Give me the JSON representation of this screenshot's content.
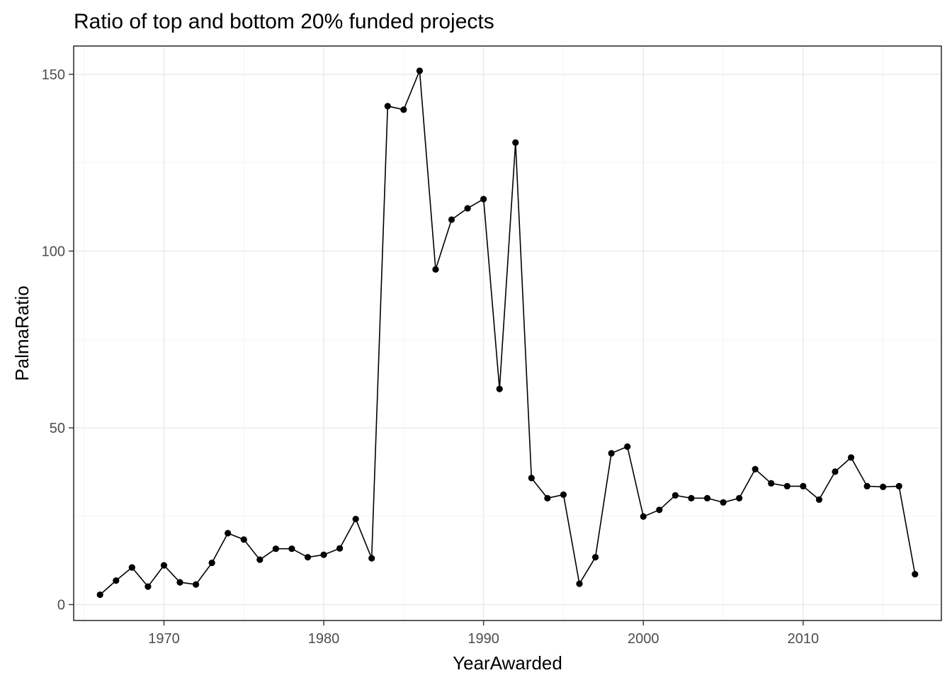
{
  "chart_data": {
    "type": "line",
    "title": "Ratio of top and bottom 20% funded projects",
    "xlabel": "YearAwarded",
    "ylabel": "PalmaRatio",
    "xlim": [
      1963.5,
      1919.5
    ],
    "ylim": [
      -4.5,
      158
    ],
    "x_ticks": [
      1970,
      1980,
      1990,
      2000,
      2010
    ],
    "y_ticks": [
      0,
      50,
      100,
      150
    ],
    "grid": true,
    "legend": "none",
    "series": [
      {
        "x": [
          1966,
          1967,
          1968,
          1969,
          1970,
          1971,
          1972,
          1973,
          1974,
          1975,
          1976,
          1977,
          1978,
          1979,
          1980,
          1981,
          1982,
          1983,
          1984,
          1985,
          1986,
          1987,
          1988,
          1989,
          1990,
          1991,
          1992,
          1993,
          1994,
          1995,
          1996,
          1997,
          1998,
          1999,
          2000,
          2001,
          2002,
          2003,
          2004,
          2005,
          2006,
          2007,
          2008,
          2009,
          2010,
          2011,
          2012,
          2013,
          2014,
          2015,
          2016,
          2017
        ],
        "values": [
          2.8,
          6.8,
          10.5,
          5.1,
          11.1,
          6.3,
          5.7,
          11.8,
          20.2,
          18.4,
          12.7,
          15.8,
          15.8,
          13.4,
          14.1,
          15.9,
          24.2,
          13.1,
          141.0,
          140.0,
          151.0,
          94.8,
          108.9,
          112.1,
          114.7,
          61.0,
          130.7,
          35.8,
          30.1,
          31.1,
          5.9,
          13.4,
          42.8,
          44.7,
          24.9,
          26.8,
          30.9,
          30.1,
          30.1,
          28.9,
          30.1,
          38.3,
          34.3,
          33.5,
          33.5,
          29.7,
          37.6,
          41.6,
          33.5,
          33.3,
          33.5,
          8.6
        ]
      }
    ],
    "colors": {
      "line": "#000000",
      "points": "#000000",
      "grid": "#ebebeb",
      "border": "#333333"
    }
  }
}
